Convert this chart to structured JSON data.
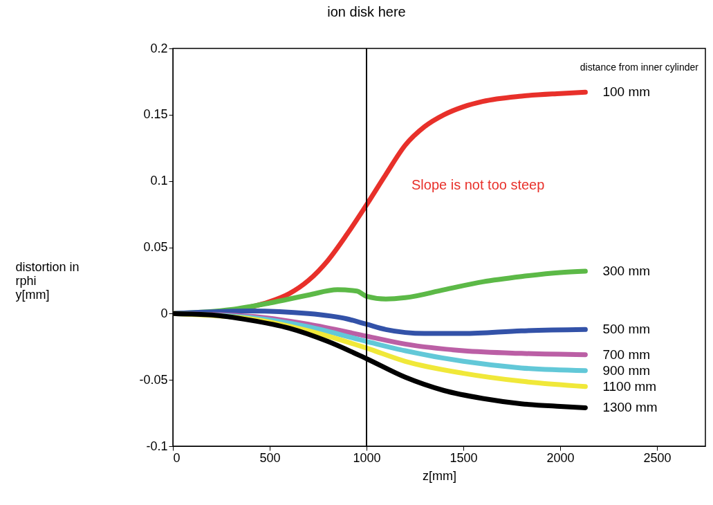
{
  "chart_data": {
    "type": "line",
    "xlabel": "z[mm]",
    "ylabel": "distortion in\nrphi\ny[mm]",
    "legend_title": "distance from inner cylinder",
    "legend": false,
    "grid": false,
    "line_style": "solid",
    "marker": "none",
    "xlim": [
      0,
      2750
    ],
    "xticks": [
      0,
      500,
      1000,
      1500,
      2000,
      2500
    ],
    "ylim": [
      -0.1,
      0.2
    ],
    "yticks": [
      -0.1,
      -0.05,
      0,
      0.05,
      0.1,
      0.15,
      0.2
    ],
    "ref_lines": [
      {
        "axis": "x",
        "value": 1000,
        "label": "ion disk here",
        "color": "#000000"
      }
    ],
    "annotations": [
      "Slope is not too steep"
    ],
    "series": [
      {
        "name": "100 mm",
        "color": "#e8302a",
        "x": [
          0,
          200,
          400,
          500,
          600,
          700,
          800,
          900,
          1000,
          1100,
          1200,
          1300,
          1400,
          1500,
          1600,
          1800,
          2000,
          2130
        ],
        "values": [
          0,
          0.001,
          0.005,
          0.009,
          0.015,
          0.025,
          0.04,
          0.06,
          0.082,
          0.105,
          0.127,
          0.141,
          0.15,
          0.156,
          0.16,
          0.164,
          0.166,
          0.167
        ]
      },
      {
        "name": "300 mm",
        "color": "#5cb947",
        "x": [
          0,
          300,
          500,
          700,
          850,
          950,
          1000,
          1100,
          1200,
          1400,
          1600,
          1800,
          2000,
          2130
        ],
        "values": [
          0,
          0.003,
          0.008,
          0.014,
          0.018,
          0.017,
          0.013,
          0.011,
          0.012,
          0.018,
          0.024,
          0.028,
          0.031,
          0.032
        ]
      },
      {
        "name": "500 mm",
        "color": "#3352a8",
        "x": [
          0,
          400,
          700,
          900,
          1000,
          1100,
          1300,
          1500,
          1800,
          2130
        ],
        "values": [
          0,
          0.002,
          0.0,
          -0.004,
          -0.008,
          -0.012,
          -0.015,
          -0.015,
          -0.013,
          -0.012
        ]
      },
      {
        "name": "700 mm",
        "color": "#bb5fa5",
        "x": [
          0,
          400,
          700,
          1000,
          1200,
          1500,
          1800,
          2130
        ],
        "values": [
          0,
          -0.002,
          -0.008,
          -0.017,
          -0.023,
          -0.028,
          -0.03,
          -0.031
        ]
      },
      {
        "name": "900 mm",
        "color": "#62c8d8",
        "x": [
          0,
          400,
          700,
          1000,
          1200,
          1500,
          1800,
          2130
        ],
        "values": [
          0,
          -0.003,
          -0.01,
          -0.021,
          -0.028,
          -0.036,
          -0.041,
          -0.043
        ]
      },
      {
        "name": "1100 mm",
        "color": "#f0e839",
        "x": [
          0,
          400,
          700,
          1000,
          1200,
          1500,
          1800,
          2130
        ],
        "values": [
          0,
          -0.004,
          -0.013,
          -0.026,
          -0.036,
          -0.045,
          -0.051,
          -0.055
        ]
      },
      {
        "name": "1300 mm",
        "color": "#000000",
        "x": [
          0,
          200,
          400,
          600,
          800,
          1000,
          1200,
          1400,
          1600,
          1800,
          2000,
          2130
        ],
        "values": [
          0,
          -0.001,
          -0.005,
          -0.011,
          -0.021,
          -0.034,
          -0.048,
          -0.058,
          -0.064,
          -0.068,
          -0.07,
          -0.071
        ]
      }
    ]
  }
}
